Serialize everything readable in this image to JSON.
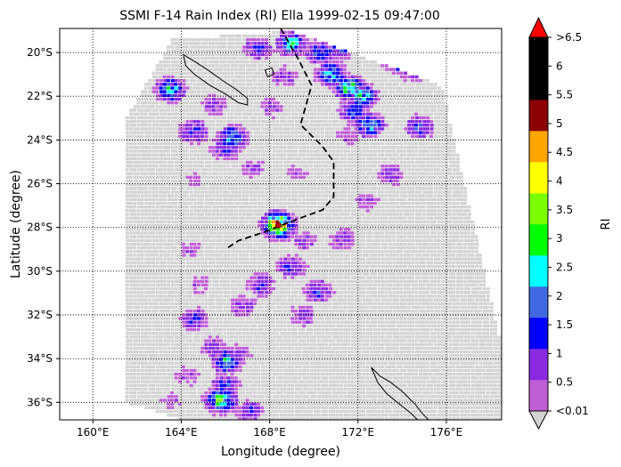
{
  "chart_data": {
    "type": "heatmap",
    "title": "SSMI F-14 Rain Index (RI) Ella 1999-02-15 09:47:00",
    "xlabel": "Longitude (degree)",
    "ylabel": "Latitude (degree)",
    "xlim": [
      158.5,
      178.5
    ],
    "ylim": [
      -36.8,
      -18.9
    ],
    "x_ticks": [
      {
        "value": 160,
        "label": "160°E"
      },
      {
        "value": 164,
        "label": "164°E"
      },
      {
        "value": 168,
        "label": "168°E"
      },
      {
        "value": 172,
        "label": "172°E"
      },
      {
        "value": 176,
        "label": "176°E"
      }
    ],
    "y_ticks": [
      {
        "value": -20,
        "label": "20°S"
      },
      {
        "value": -22,
        "label": "22°S"
      },
      {
        "value": -24,
        "label": "24°S"
      },
      {
        "value": -26,
        "label": "26°S"
      },
      {
        "value": -28,
        "label": "28°S"
      },
      {
        "value": -30,
        "label": "30°S"
      },
      {
        "value": -32,
        "label": "32°S"
      },
      {
        "value": -34,
        "label": "34°S"
      },
      {
        "value": -36,
        "label": "36°S"
      }
    ],
    "grid": true,
    "grid_style": "dotted",
    "swath_corners": [
      [
        161.5,
        -23.0
      ],
      [
        163.6,
        -19.4
      ],
      [
        169.0,
        -19.0
      ],
      [
        175.8,
        -21.5
      ],
      [
        178.5,
        -33.4
      ],
      [
        178.5,
        -36.8
      ],
      [
        164.0,
        -36.8
      ],
      [
        161.5,
        -36.0
      ]
    ],
    "no_rain_color": "#d3d3d3",
    "rain_pixels": [
      {
        "lon": 167.5,
        "lat": -19.8,
        "ri": 1.2
      },
      {
        "lon": 169.0,
        "lat": -19.6,
        "ri": 2.2
      },
      {
        "lon": 170.3,
        "lat": -20.0,
        "ri": 1.7
      },
      {
        "lon": 171.2,
        "lat": -19.8,
        "ri": 1.3
      },
      {
        "lon": 170.8,
        "lat": -21.0,
        "ri": 2.3
      },
      {
        "lon": 171.6,
        "lat": -21.6,
        "ri": 2.8
      },
      {
        "lon": 172.2,
        "lat": -22.0,
        "ri": 2.4
      },
      {
        "lon": 171.8,
        "lat": -22.7,
        "ri": 1.6
      },
      {
        "lon": 173.8,
        "lat": -20.4,
        "ri": 1.6
      },
      {
        "lon": 174.5,
        "lat": -20.8,
        "ri": 1.2
      },
      {
        "lon": 174.8,
        "lat": -23.4,
        "ri": 1.4
      },
      {
        "lon": 172.5,
        "lat": -23.3,
        "ri": 2.1
      },
      {
        "lon": 171.5,
        "lat": -23.8,
        "ri": 0.6
      },
      {
        "lon": 163.5,
        "lat": -21.7,
        "ri": 2.2
      },
      {
        "lon": 164.6,
        "lat": -23.6,
        "ri": 1.3
      },
      {
        "lon": 166.3,
        "lat": -23.9,
        "ri": 2.1
      },
      {
        "lon": 166.0,
        "lat": -24.4,
        "ri": 1.3
      },
      {
        "lon": 165.5,
        "lat": -22.4,
        "ri": 0.8
      },
      {
        "lon": 168.1,
        "lat": -22.5,
        "ri": 0.7
      },
      {
        "lon": 168.7,
        "lat": -21.1,
        "ri": 0.8
      },
      {
        "lon": 164.6,
        "lat": -25.8,
        "ri": 0.4
      },
      {
        "lon": 167.3,
        "lat": -25.3,
        "ri": 0.6
      },
      {
        "lon": 169.2,
        "lat": -25.5,
        "ri": 0.5
      },
      {
        "lon": 173.5,
        "lat": -25.6,
        "ri": 0.9
      },
      {
        "lon": 172.4,
        "lat": -26.8,
        "ri": 0.6
      },
      {
        "lon": 168.4,
        "lat": -27.9,
        "ri": 4.8
      },
      {
        "lon": 169.6,
        "lat": -28.6,
        "ri": 0.7
      },
      {
        "lon": 171.3,
        "lat": -28.5,
        "ri": 0.9
      },
      {
        "lon": 169.0,
        "lat": -29.8,
        "ri": 1.2
      },
      {
        "lon": 167.6,
        "lat": -30.6,
        "ri": 1.1
      },
      {
        "lon": 170.2,
        "lat": -30.9,
        "ri": 1.3
      },
      {
        "lon": 169.5,
        "lat": -32.0,
        "ri": 0.8
      },
      {
        "lon": 164.8,
        "lat": -30.6,
        "ri": 0.5
      },
      {
        "lon": 166.8,
        "lat": -31.6,
        "ri": 0.9
      },
      {
        "lon": 164.6,
        "lat": -32.2,
        "ri": 1.2
      },
      {
        "lon": 165.5,
        "lat": -33.5,
        "ri": 0.8
      },
      {
        "lon": 166.1,
        "lat": -34.1,
        "ri": 2.2
      },
      {
        "lon": 166.0,
        "lat": -35.2,
        "ri": 1.3
      },
      {
        "lon": 165.8,
        "lat": -35.9,
        "ri": 2.8
      },
      {
        "lon": 164.3,
        "lat": -34.8,
        "ri": 0.6
      },
      {
        "lon": 163.6,
        "lat": -35.9,
        "ri": 0.5
      },
      {
        "lon": 167.1,
        "lat": -36.4,
        "ri": 1.1
      },
      {
        "lon": 166.7,
        "lat": -33.8,
        "ri": 0.7
      },
      {
        "lon": 164.5,
        "lat": -29.0,
        "ri": 0.5
      }
    ],
    "storm_track": [
      [
        168.5,
        -18.9
      ],
      [
        169.3,
        -20.3
      ],
      [
        169.9,
        -21.5
      ],
      [
        169.4,
        -23.3
      ],
      [
        170.4,
        -24.3
      ],
      [
        170.9,
        -25.0
      ],
      [
        170.9,
        -26.6
      ],
      [
        170.4,
        -27.2
      ],
      [
        169.3,
        -27.6
      ],
      [
        167.8,
        -28.2
      ],
      [
        166.6,
        -28.6
      ],
      [
        166.0,
        -29.0
      ]
    ],
    "storm_position": {
      "lon": 168.4,
      "lat": -27.9
    },
    "coastline_color": "#000000",
    "colorbar": {
      "label": "RI",
      "tick_labels": [
        "<0.01",
        "0.5",
        "1",
        "1.5",
        "2",
        "2.5",
        "3",
        "3.5",
        "4",
        "4.5",
        "5",
        "5.5",
        "6",
        ">6.5"
      ],
      "bins": [
        {
          "color": "#bf5fd6"
        },
        {
          "color": "#8a2be2"
        },
        {
          "color": "#0000ff"
        },
        {
          "color": "#4169e1"
        },
        {
          "color": "#00ffff"
        },
        {
          "color": "#00ff00"
        },
        {
          "color": "#7cfc00"
        },
        {
          "color": "#ffff00"
        },
        {
          "color": "#ffa500"
        },
        {
          "color": "#8b0000"
        },
        {
          "color": "#000000"
        },
        {
          "color": "#000000"
        }
      ],
      "under_color": "#d3d3d3",
      "over_color": "#ff0000"
    }
  }
}
